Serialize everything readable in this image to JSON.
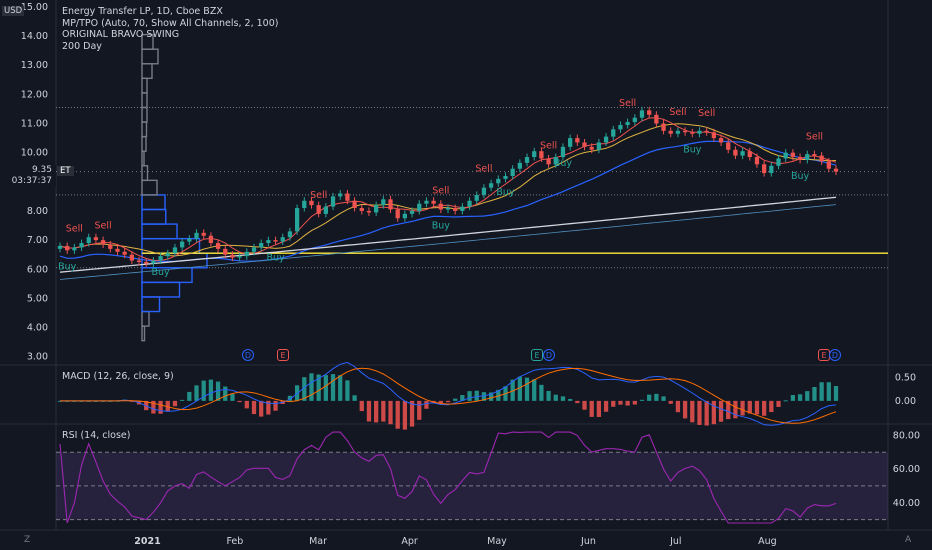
{
  "legend": {
    "symbol_line": "Energy Transfer LP, 1D, Cboe BZX",
    "indicator_1": "MP/TPO (Auto, 70, Show All Channels, 2, 100)",
    "indicator_2": "ORIGINAL BRAVO SWING",
    "indicator_3": "200 Day"
  },
  "currency": "USD",
  "price_badge": {
    "price": "9.35",
    "countdown": "03:37:37",
    "tag": "ET"
  },
  "colors": {
    "background": "#131722",
    "up": "#26a69a",
    "down": "#ef5350",
    "ma_fast": "#ef5350",
    "ma_mid": "#e0b341",
    "ma_blue": "#2962ff",
    "ma_200": "#d1d4dc",
    "poc": "#ffeb3b",
    "macd_line": "#2962ff",
    "signal_line": "#ff6d00",
    "rsi_line": "#9c27b0",
    "rsi_band": "#7e57c2"
  },
  "macd": {
    "title": "MACD (12, 26, close, 9)",
    "ticks": [
      "0.50",
      "0.00"
    ]
  },
  "rsi": {
    "title": "RSI (14, close)",
    "ticks": [
      "80.00",
      "60.00",
      "40.00"
    ]
  },
  "events": [
    {
      "label": "D",
      "kind": "div",
      "date": "2021-01-29"
    },
    {
      "label": "E",
      "kind": "earn",
      "date": "2021-02-17"
    },
    {
      "label": "E",
      "kind": "earn-g",
      "date": "2021-05-05"
    },
    {
      "label": "D",
      "kind": "div",
      "date": "2021-05-07"
    },
    {
      "label": "E",
      "kind": "earn",
      "date": "2021-08-04"
    },
    {
      "label": "D",
      "kind": "div",
      "date": "2021-08-06"
    }
  ],
  "corner": {
    "left": "Z",
    "right": "A"
  },
  "chart_data": {
    "type": "candlestick",
    "y_axis": {
      "ticks": [
        "3.00",
        "4.00",
        "5.00",
        "6.00",
        "7.00",
        "8.00",
        "10.00",
        "11.00",
        "12.00",
        "13.00",
        "14.00",
        "15.00"
      ],
      "range": [
        2.75,
        15.1
      ]
    },
    "x_axis": {
      "ticks": [
        "2021",
        "Feb",
        "Mar",
        "Apr",
        "May",
        "Jun",
        "Jul",
        "Aug"
      ]
    },
    "close": [
      6.8,
      6.65,
      6.75,
      6.9,
      7.1,
      7.0,
      6.85,
      6.7,
      6.6,
      6.5,
      6.3,
      6.25,
      6.2,
      6.3,
      6.45,
      6.55,
      6.75,
      6.95,
      7.05,
      7.25,
      7.15,
      6.9,
      6.7,
      6.5,
      6.4,
      6.45,
      6.6,
      6.75,
      6.9,
      7.0,
      6.95,
      7.1,
      7.3,
      8.1,
      8.35,
      8.2,
      7.9,
      8.15,
      8.5,
      8.6,
      8.35,
      8.1,
      8.0,
      7.95,
      8.2,
      8.4,
      8.05,
      7.75,
      7.9,
      8.0,
      8.25,
      8.35,
      8.25,
      8.05,
      8.1,
      8.0,
      8.15,
      8.35,
      8.55,
      8.8,
      8.95,
      9.1,
      9.2,
      9.45,
      9.65,
      9.85,
      10.05,
      9.8,
      9.6,
      9.85,
      10.2,
      10.5,
      10.35,
      10.2,
      10.1,
      10.35,
      10.55,
      10.8,
      10.95,
      11.05,
      11.2,
      11.45,
      11.3,
      11.0,
      10.75,
      10.65,
      10.75,
      10.7,
      10.65,
      10.75,
      10.7,
      10.5,
      10.35,
      10.1,
      9.9,
      10.05,
      9.85,
      9.6,
      9.3,
      9.55,
      9.8,
      10.0,
      9.85,
      9.75,
      9.95,
      9.9,
      9.7,
      9.45,
      9.35
    ],
    "annotations": [
      {
        "text": "Sell",
        "type": "sell",
        "i": 3
      },
      {
        "text": "Sell",
        "type": "sell",
        "i": 10
      },
      {
        "text": "Buy",
        "type": "buy",
        "i": 2
      },
      {
        "text": "Buy",
        "type": "buy",
        "i": 22
      },
      {
        "text": "Buy",
        "type": "buy",
        "i": 47
      },
      {
        "text": "Sell",
        "type": "sell",
        "i": 57
      },
      {
        "text": "Sell",
        "type": "sell",
        "i": 84
      },
      {
        "text": "Buy",
        "type": "buy",
        "i": 83
      },
      {
        "text": "Sell",
        "type": "sell",
        "i": 93
      },
      {
        "text": "Buy",
        "type": "buy",
        "i": 98
      },
      {
        "text": "Sell",
        "type": "sell",
        "i": 107
      },
      {
        "text": "Buy",
        "type": "buy",
        "i": 110
      },
      {
        "text": "Sell",
        "type": "sell",
        "i": 124
      },
      {
        "text": "Sell",
        "type": "sell",
        "i": 142
      },
      {
        "text": "Buy",
        "type": "buy",
        "i": 138
      },
      {
        "text": "Sell",
        "type": "sell",
        "i": 165
      },
      {
        "text": "Buy",
        "type": "buy",
        "i": 162
      },
      {
        "text": "Sell",
        "type": "sell",
        "i": 136
      }
    ],
    "volume_profile": [
      {
        "price": 3.8,
        "size": 10,
        "value_area": false
      },
      {
        "price": 4.3,
        "size": 28,
        "value_area": false
      },
      {
        "price": 4.8,
        "size": 70,
        "value_area": true
      },
      {
        "price": 5.3,
        "size": 150,
        "value_area": true
      },
      {
        "price": 5.8,
        "size": 200,
        "value_area": true
      },
      {
        "price": 6.3,
        "size": 260,
        "value_area": true
      },
      {
        "price": 6.8,
        "size": 230,
        "value_area": true
      },
      {
        "price": 7.3,
        "size": 140,
        "value_area": true
      },
      {
        "price": 7.8,
        "size": 95,
        "value_area": true
      },
      {
        "price": 8.3,
        "size": 92,
        "value_area": true
      },
      {
        "price": 8.8,
        "size": 60,
        "value_area": false
      },
      {
        "price": 9.3,
        "size": 22,
        "value_area": false
      },
      {
        "price": 9.8,
        "size": 8,
        "value_area": false
      },
      {
        "price": 10.3,
        "size": 16,
        "value_area": false
      },
      {
        "price": 10.8,
        "size": 18,
        "value_area": false
      },
      {
        "price": 11.3,
        "size": 20,
        "value_area": false
      },
      {
        "price": 11.8,
        "size": 20,
        "value_area": false
      },
      {
        "price": 12.3,
        "size": 20,
        "value_area": false
      },
      {
        "price": 12.8,
        "size": 40,
        "value_area": false
      },
      {
        "price": 13.3,
        "size": 64,
        "value_area": false
      },
      {
        "price": 13.8,
        "size": 44,
        "value_area": false
      }
    ],
    "poc_price": 6.55,
    "value_area_high": 8.5,
    "value_area_low": 6.05,
    "dotted_levels": [
      11.55,
      8.55,
      6.05
    ],
    "rsi_levels": [
      70,
      50,
      30
    ],
    "rsi_range": [
      25,
      85
    ],
    "macd_range": [
      -0.45,
      0.7
    ]
  }
}
